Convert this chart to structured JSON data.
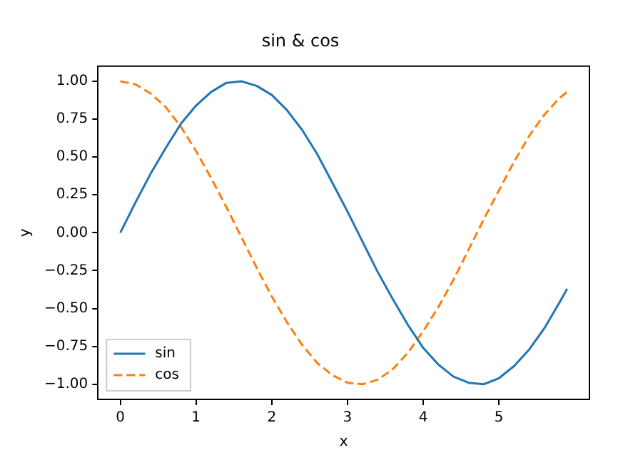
{
  "chart_data": {
    "type": "line",
    "title": "sin & cos",
    "xlabel": "x",
    "ylabel": "y",
    "x": [
      0,
      0.2,
      0.4,
      0.6,
      0.8,
      1.0,
      1.2,
      1.4,
      1.6,
      1.8,
      2.0,
      2.2,
      2.4,
      2.6,
      2.8,
      3.0,
      3.2,
      3.4,
      3.6,
      3.8,
      4.0,
      4.2,
      4.4,
      4.6,
      4.8,
      5.0,
      5.2,
      5.4,
      5.6,
      5.8,
      5.9
    ],
    "series": [
      {
        "name": "sin",
        "color": "#1f77b4",
        "line_style": "solid",
        "values": [
          0,
          0.2,
          0.39,
          0.56,
          0.72,
          0.84,
          0.93,
          0.99,
          1.0,
          0.97,
          0.91,
          0.81,
          0.68,
          0.52,
          0.33,
          0.14,
          -0.06,
          -0.26,
          -0.44,
          -0.61,
          -0.76,
          -0.87,
          -0.95,
          -0.99,
          -1.0,
          -0.96,
          -0.88,
          -0.77,
          -0.63,
          -0.46,
          -0.37
        ]
      },
      {
        "name": "cos",
        "color": "#ff7f0e",
        "line_style": "dashed",
        "values": [
          1.0,
          0.98,
          0.92,
          0.83,
          0.7,
          0.54,
          0.36,
          0.17,
          -0.03,
          -0.23,
          -0.42,
          -0.59,
          -0.74,
          -0.86,
          -0.94,
          -0.99,
          -1.0,
          -0.97,
          -0.9,
          -0.79,
          -0.65,
          -0.49,
          -0.31,
          -0.11,
          0.09,
          0.28,
          0.47,
          0.64,
          0.78,
          0.89,
          0.93
        ]
      }
    ],
    "xlim": [
      -0.295,
      6.195
    ],
    "xticks": [
      0,
      1,
      2,
      3,
      4,
      5
    ],
    "ylim": [
      -1.1,
      1.1
    ],
    "yticks": [
      {
        "value": -1,
        "label": "−1.00"
      },
      {
        "value": -0.75,
        "label": "−0.75"
      },
      {
        "value": -0.5,
        "label": "−0.50"
      },
      {
        "value": -0.25,
        "label": "−0.25"
      },
      {
        "value": 0,
        "label": "0.00"
      },
      {
        "value": 0.25,
        "label": "0.25"
      },
      {
        "value": 0.5,
        "label": "0.50"
      },
      {
        "value": 0.75,
        "label": "0.75"
      },
      {
        "value": 1,
        "label": "1.00"
      }
    ],
    "grid": false,
    "legend": "bottom left",
    "marker": "none"
  }
}
